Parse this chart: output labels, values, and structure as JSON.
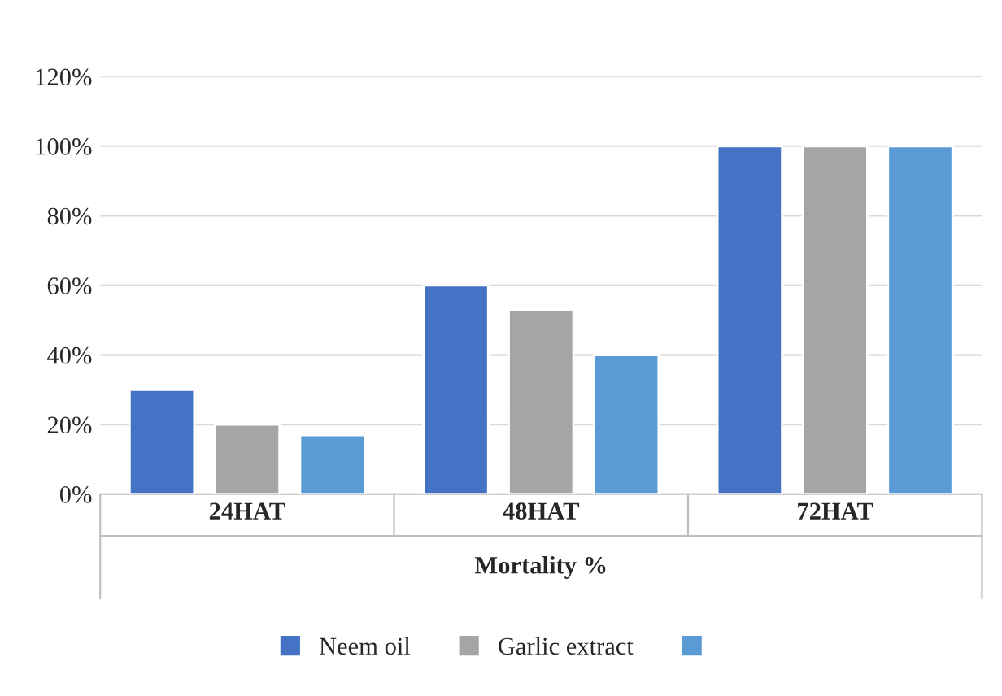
{
  "chart_data": {
    "type": "bar",
    "xlabel": "Mortality %",
    "categories": [
      "24HAT",
      "48HAT",
      "72HAT"
    ],
    "series": [
      {
        "name": "Neem oil",
        "color": "#4472c4",
        "values": [
          30,
          60,
          100
        ]
      },
      {
        "name": "Garlic extract",
        "color": "#a5a5a5",
        "values": [
          20,
          53,
          100
        ]
      },
      {
        "color": "#5b9bd5",
        "values": [
          17,
          40,
          100
        ]
      }
    ],
    "ylim": [
      0,
      120
    ],
    "yticks": [
      {
        "value": 0,
        "label": "0%"
      },
      {
        "value": 20,
        "label": "20%"
      },
      {
        "value": 40,
        "label": "40%"
      },
      {
        "value": 60,
        "label": "60%"
      },
      {
        "value": 80,
        "label": "80%"
      },
      {
        "value": 100,
        "label": "100%"
      },
      {
        "value": 120,
        "label": "120%"
      }
    ],
    "grid": "y",
    "legend": "bottom"
  }
}
